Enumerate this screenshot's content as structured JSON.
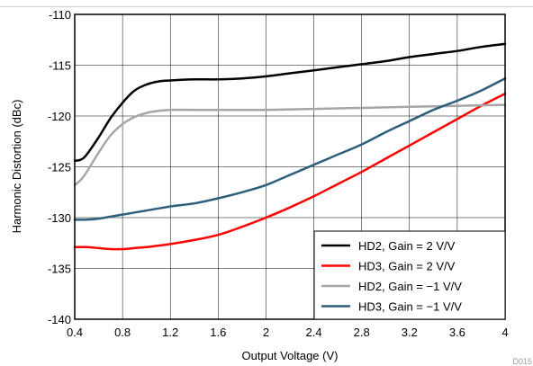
{
  "figure_id": "D015",
  "chart_data": {
    "type": "line",
    "title": "",
    "xlabel": "Output Voltage (V)",
    "ylabel": "Harmonic Distortion (dBc)",
    "xlim": [
      0.4,
      4
    ],
    "ylim": [
      -140,
      -110
    ],
    "x_ticks": [
      0.4,
      0.8,
      1.2,
      1.6,
      2,
      2.4,
      2.8,
      3.2,
      3.6,
      4
    ],
    "x_tick_labels": [
      "0.4",
      "0.8",
      "1.2",
      "1.6",
      "2",
      "2.4",
      "2.8",
      "3.2",
      "3.6",
      "4"
    ],
    "y_ticks": [
      -140,
      -135,
      -130,
      -125,
      -120,
      -115,
      -110
    ],
    "y_tick_labels": [
      "-140",
      "-135",
      "-130",
      "-125",
      "-120",
      "-115",
      "-110"
    ],
    "grid": true,
    "legend_position": "bottom-right",
    "series": [
      {
        "name": "HD2, Gain = 2 V/V",
        "color": "#000000",
        "x": [
          0.4,
          0.45,
          0.5,
          0.6,
          0.7,
          0.8,
          0.9,
          1.0,
          1.1,
          1.2,
          1.4,
          1.6,
          1.8,
          2.0,
          2.2,
          2.4,
          2.6,
          2.8,
          3.0,
          3.2,
          3.4,
          3.6,
          3.8,
          4.0
        ],
        "y": [
          -124.4,
          -124.3,
          -123.8,
          -122.1,
          -120.2,
          -118.7,
          -117.5,
          -116.9,
          -116.6,
          -116.5,
          -116.4,
          -116.4,
          -116.3,
          -116.1,
          -115.8,
          -115.5,
          -115.2,
          -114.9,
          -114.6,
          -114.2,
          -113.9,
          -113.6,
          -113.2,
          -112.9
        ]
      },
      {
        "name": "HD3, Gain = 2 V/V",
        "color": "#ff0000",
        "x": [
          0.4,
          0.5,
          0.6,
          0.7,
          0.8,
          0.9,
          1.0,
          1.2,
          1.4,
          1.6,
          1.8,
          2.0,
          2.2,
          2.4,
          2.6,
          2.8,
          3.0,
          3.2,
          3.4,
          3.6,
          3.8,
          4.0
        ],
        "y": [
          -132.9,
          -132.9,
          -133.0,
          -133.1,
          -133.1,
          -133.0,
          -132.9,
          -132.6,
          -132.2,
          -131.7,
          -130.9,
          -130.0,
          -129.0,
          -127.9,
          -126.7,
          -125.5,
          -124.2,
          -122.9,
          -121.6,
          -120.3,
          -119.0,
          -117.8
        ]
      },
      {
        "name": "HD2, Gain = −1 V/V",
        "color": "#a6a6a6",
        "x": [
          0.4,
          0.45,
          0.5,
          0.6,
          0.7,
          0.8,
          0.9,
          1.0,
          1.1,
          1.2,
          1.4,
          1.6,
          1.8,
          2.0,
          2.4,
          2.8,
          3.2,
          3.6,
          4.0
        ],
        "y": [
          -126.8,
          -126.3,
          -125.5,
          -123.6,
          -121.9,
          -120.8,
          -120.1,
          -119.7,
          -119.5,
          -119.4,
          -119.4,
          -119.4,
          -119.4,
          -119.4,
          -119.3,
          -119.2,
          -119.1,
          -119.0,
          -118.9
        ]
      },
      {
        "name": "HD3, Gain = −1 V/V",
        "color": "#2d5f7c",
        "x": [
          0.4,
          0.5,
          0.6,
          0.7,
          0.8,
          0.9,
          1.0,
          1.2,
          1.4,
          1.6,
          1.8,
          2.0,
          2.2,
          2.4,
          2.6,
          2.8,
          3.0,
          3.2,
          3.4,
          3.6,
          3.8,
          4.0
        ],
        "y": [
          -130.2,
          -130.2,
          -130.1,
          -129.9,
          -129.7,
          -129.5,
          -129.3,
          -128.9,
          -128.6,
          -128.1,
          -127.5,
          -126.8,
          -125.8,
          -124.8,
          -123.8,
          -122.8,
          -121.6,
          -120.5,
          -119.4,
          -118.5,
          -117.5,
          -116.3
        ]
      }
    ]
  }
}
